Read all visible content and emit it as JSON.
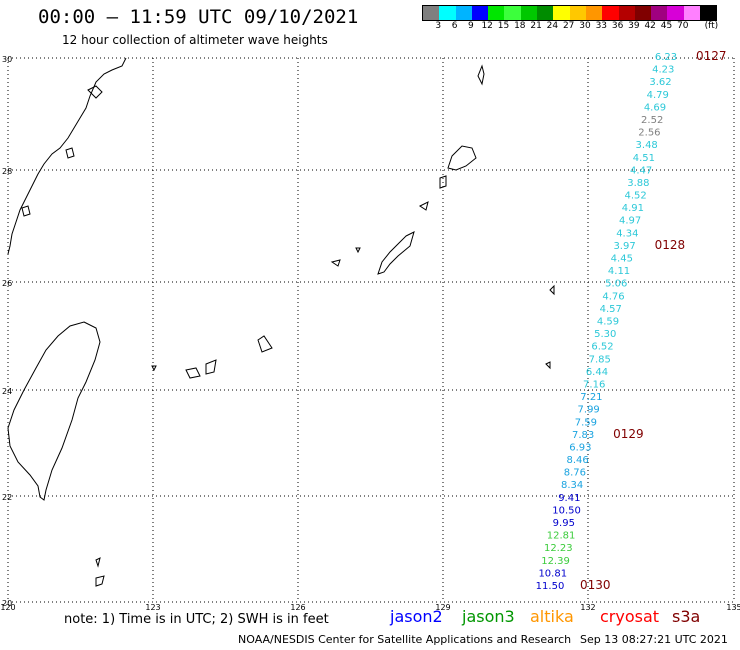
{
  "header": {
    "title": "00:00 — 11:59 UTC 09/10/2021",
    "subtitle": "12 hour collection of altimeter wave heights"
  },
  "colorbar": {
    "colors": [
      "#7f7f7f",
      "#00ffff",
      "#00b4ff",
      "#0000ff",
      "#00e600",
      "#3cff3c",
      "#00c800",
      "#008c00",
      "#ffff00",
      "#ffc800",
      "#ff9600",
      "#ff0000",
      "#b40000",
      "#800000",
      "#a00080",
      "#d700d7",
      "#ff80ff",
      "#000000"
    ],
    "labels": [
      "3",
      "6",
      "9",
      "12",
      "15",
      "18",
      "21",
      "24",
      "27",
      "30",
      "33",
      "36",
      "39",
      "42",
      "45",
      "70",
      "(ft)"
    ]
  },
  "axes": {
    "lat_labels": [
      "30",
      "28",
      "26",
      "24",
      "22",
      "20"
    ],
    "lon_labels": [
      "120",
      "123",
      "126",
      "129",
      "132",
      "135"
    ]
  },
  "track": {
    "points": [
      {
        "value": "6.23",
        "color": "#2cc8d8"
      },
      {
        "value": "4.23",
        "color": "#2cc8d8"
      },
      {
        "value": "3.62",
        "color": "#2cc8d8"
      },
      {
        "value": "4.79",
        "color": "#2cc8d8"
      },
      {
        "value": "4.69",
        "color": "#2cc8d8"
      },
      {
        "value": "2.52",
        "color": "#808080"
      },
      {
        "value": "2.56",
        "color": "#808080"
      },
      {
        "value": "3.48",
        "color": "#2cc8d8"
      },
      {
        "value": "4.51",
        "color": "#2cc8d8"
      },
      {
        "value": "4.47",
        "color": "#2cc8d8"
      },
      {
        "value": "3.88",
        "color": "#2cc8d8"
      },
      {
        "value": "4.52",
        "color": "#2cc8d8"
      },
      {
        "value": "4.91",
        "color": "#2cc8d8"
      },
      {
        "value": "4.97",
        "color": "#2cc8d8"
      },
      {
        "value": "4.34",
        "color": "#2cc8d8"
      },
      {
        "value": "3.97",
        "color": "#2cc8d8"
      },
      {
        "value": "4.45",
        "color": "#2cc8d8"
      },
      {
        "value": "4.11",
        "color": "#2cc8d8"
      },
      {
        "value": "5.06",
        "color": "#2cc8d8"
      },
      {
        "value": "4.76",
        "color": "#2cc8d8"
      },
      {
        "value": "4.57",
        "color": "#2cc8d8"
      },
      {
        "value": "4.59",
        "color": "#2cc8d8"
      },
      {
        "value": "5.30",
        "color": "#2cc8d8"
      },
      {
        "value": "6.52",
        "color": "#2cc8d8"
      },
      {
        "value": "7.85",
        "color": "#2cc8d8"
      },
      {
        "value": "6.44",
        "color": "#2cc8d8"
      },
      {
        "value": "7.16",
        "color": "#2cc8d8"
      },
      {
        "value": "7.21",
        "color": "#1aa3e0"
      },
      {
        "value": "7.99",
        "color": "#1aa3e0"
      },
      {
        "value": "7.59",
        "color": "#1aa3e0"
      },
      {
        "value": "7.83",
        "color": "#1aa3e0"
      },
      {
        "value": "6.93",
        "color": "#1aa3e0"
      },
      {
        "value": "8.46",
        "color": "#1aa3e0"
      },
      {
        "value": "8.76",
        "color": "#1aa3e0"
      },
      {
        "value": "8.34",
        "color": "#1aa3e0"
      },
      {
        "value": "9.41",
        "color": "#0000cc"
      },
      {
        "value": "10.50",
        "color": "#0000cc"
      },
      {
        "value": "9.95",
        "color": "#0000cc"
      },
      {
        "value": "12.81",
        "color": "#3ccc3c"
      },
      {
        "value": "12.23",
        "color": "#3ccc3c"
      },
      {
        "value": "12.39",
        "color": "#3ccc3c"
      },
      {
        "value": "10.81",
        "color": "#0000cc"
      },
      {
        "value": "11.50",
        "color": "#0000cc"
      }
    ],
    "time_labels": [
      "0127",
      "0128",
      "0129",
      "0130"
    ],
    "time_color": "#800000"
  },
  "footer": {
    "note": "note: 1) Time is in UTC; 2) SWH is in feet",
    "legend": [
      {
        "label": "jason2",
        "color": "#0000ff"
      },
      {
        "label": "jason3",
        "color": "#009600"
      },
      {
        "label": "altika",
        "color": "#ff9600"
      },
      {
        "label": "cryosat",
        "color": "#ff0000"
      },
      {
        "label": "s3a",
        "color": "#800000"
      }
    ],
    "credit": "NOAA/NESDIS Center for Satellite Applications and Research",
    "timestamp": "Sep 13 08:27:21 UTC 2021"
  }
}
